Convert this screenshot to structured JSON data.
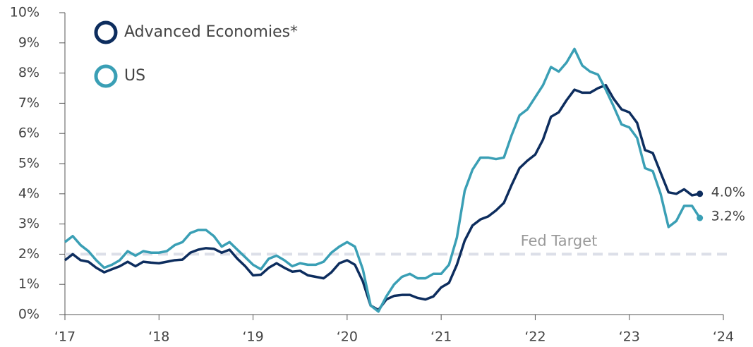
{
  "chart_data": {
    "type": "line",
    "x": [
      2017,
      2017.083,
      2017.167,
      2017.25,
      2017.333,
      2017.417,
      2017.5,
      2017.583,
      2017.667,
      2017.75,
      2017.833,
      2017.917,
      2018,
      2018.083,
      2018.167,
      2018.25,
      2018.333,
      2018.417,
      2018.5,
      2018.583,
      2018.667,
      2018.75,
      2018.833,
      2018.917,
      2019,
      2019.083,
      2019.167,
      2019.25,
      2019.333,
      2019.417,
      2019.5,
      2019.583,
      2019.667,
      2019.75,
      2019.833,
      2019.917,
      2020,
      2020.083,
      2020.167,
      2020.25,
      2020.333,
      2020.417,
      2020.5,
      2020.583,
      2020.667,
      2020.75,
      2020.833,
      2020.917,
      2021,
      2021.083,
      2021.167,
      2021.25,
      2021.333,
      2021.417,
      2021.5,
      2021.583,
      2021.667,
      2021.75,
      2021.833,
      2021.917,
      2022,
      2022.083,
      2022.167,
      2022.25,
      2022.333,
      2022.417,
      2022.5,
      2022.583,
      2022.667,
      2022.75,
      2022.833,
      2022.917,
      2023,
      2023.083,
      2023.167,
      2023.25,
      2023.333,
      2023.417,
      2023.5,
      2023.583,
      2023.667,
      2023.75
    ],
    "series": [
      {
        "name": "Advanced Economies*",
        "color": "#0d2d5e",
        "end_label": "4.0%",
        "values": [
          1.8,
          2.0,
          1.8,
          1.75,
          1.55,
          1.4,
          1.5,
          1.6,
          1.75,
          1.6,
          1.75,
          1.72,
          1.7,
          1.75,
          1.8,
          1.82,
          2.05,
          2.15,
          2.2,
          2.18,
          2.05,
          2.15,
          1.85,
          1.6,
          1.3,
          1.32,
          1.55,
          1.7,
          1.55,
          1.42,
          1.45,
          1.3,
          1.25,
          1.2,
          1.4,
          1.7,
          1.8,
          1.65,
          1.1,
          0.3,
          0.15,
          0.5,
          0.62,
          0.65,
          0.65,
          0.55,
          0.5,
          0.6,
          0.9,
          1.05,
          1.65,
          2.45,
          2.95,
          3.15,
          3.25,
          3.45,
          3.7,
          4.3,
          4.85,
          5.1,
          5.3,
          5.8,
          6.55,
          6.7,
          7.1,
          7.45,
          7.35,
          7.35,
          7.5,
          7.6,
          7.15,
          6.8,
          6.7,
          6.35,
          5.45,
          5.35,
          4.7,
          4.05,
          4.0,
          4.15,
          3.95,
          4.0
        ]
      },
      {
        "name": "US",
        "color": "#3a9fb5",
        "end_label": "3.2%",
        "values": [
          2.4,
          2.6,
          2.3,
          2.1,
          1.8,
          1.55,
          1.65,
          1.8,
          2.1,
          1.95,
          2.1,
          2.05,
          2.05,
          2.1,
          2.3,
          2.4,
          2.7,
          2.8,
          2.8,
          2.6,
          2.25,
          2.4,
          2.15,
          1.9,
          1.65,
          1.5,
          1.85,
          1.95,
          1.8,
          1.6,
          1.7,
          1.65,
          1.65,
          1.75,
          2.05,
          2.25,
          2.4,
          2.25,
          1.5,
          0.3,
          0.1,
          0.6,
          1.0,
          1.25,
          1.35,
          1.2,
          1.2,
          1.35,
          1.35,
          1.65,
          2.55,
          4.1,
          4.8,
          5.2,
          5.2,
          5.15,
          5.2,
          5.95,
          6.6,
          6.8,
          7.2,
          7.6,
          8.2,
          8.05,
          8.35,
          8.8,
          8.25,
          8.05,
          7.95,
          7.45,
          6.9,
          6.3,
          6.2,
          5.85,
          4.85,
          4.75,
          4.0,
          2.9,
          3.1,
          3.6,
          3.6,
          3.2
        ]
      }
    ],
    "reference_line": {
      "value": 2,
      "label": "Fed Target"
    },
    "xlim": [
      2017,
      2024
    ],
    "xticks": [
      {
        "value": 2017,
        "label": "‘17"
      },
      {
        "value": 2018,
        "label": "‘18"
      },
      {
        "value": 2019,
        "label": "‘19"
      },
      {
        "value": 2020,
        "label": "‘20"
      },
      {
        "value": 2021,
        "label": "‘21"
      },
      {
        "value": 2022,
        "label": "‘22"
      },
      {
        "value": 2023,
        "label": "‘23"
      },
      {
        "value": 2024,
        "label": "‘24"
      }
    ],
    "ylim": [
      0,
      10
    ],
    "yticks": [
      {
        "value": 0,
        "label": "0%"
      },
      {
        "value": 1,
        "label": "1%"
      },
      {
        "value": 2,
        "label": "2%"
      },
      {
        "value": 3,
        "label": "3%"
      },
      {
        "value": 4,
        "label": "4%"
      },
      {
        "value": 5,
        "label": "5%"
      },
      {
        "value": 6,
        "label": "6%"
      },
      {
        "value": 7,
        "label": "7%"
      },
      {
        "value": 8,
        "label": "8%"
      },
      {
        "value": 9,
        "label": "9%"
      },
      {
        "value": 10,
        "label": "10%"
      }
    ],
    "legend": "top-left"
  }
}
